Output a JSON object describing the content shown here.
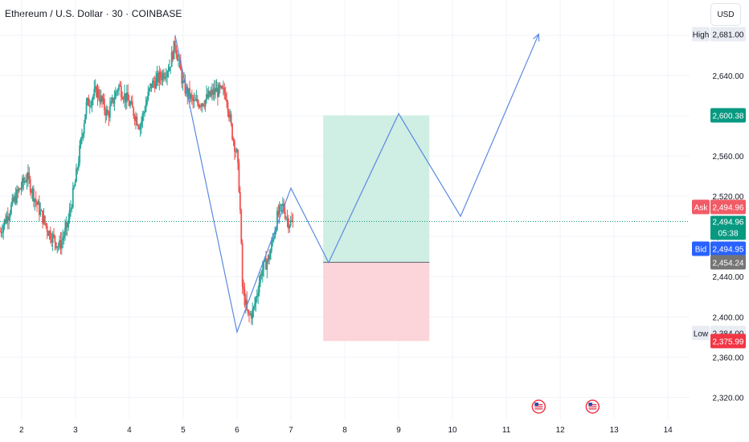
{
  "header": {
    "title": "Ethereum / U.S. Dollar · 30 · COINBASE",
    "currency": "USD"
  },
  "colors": {
    "up": "#26a69a",
    "down": "#ef5350",
    "drawing": "#5b8ae0",
    "profit_zone": "#cfeee4",
    "loss_zone": "#fbd5d9",
    "current_price": "#089981",
    "ask": "#f15b66",
    "bid": "#2962ff",
    "marker_tag": "#757575",
    "low_tag": "#f23645"
  },
  "chart_data": {
    "type": "candlestick",
    "symbol": "Ethereum / U.S. Dollar",
    "interval": "30",
    "exchange": "COINBASE",
    "x_ticks": [
      "2",
      "3",
      "4",
      "5",
      "6",
      "7",
      "8",
      "9",
      "10",
      "11",
      "12",
      "13",
      "14"
    ],
    "x_tick_days": [
      2,
      3,
      4,
      5,
      6,
      7,
      8,
      9,
      10,
      11,
      12,
      13,
      14
    ],
    "x_range": [
      1.6,
      14.4
    ],
    "y_ticks": [
      2320,
      2360,
      2400,
      2440,
      2480,
      2520,
      2560,
      2600,
      2640,
      2680
    ],
    "y_tick_labels": [
      "2,320.00",
      "2,360.00",
      "2,400.00",
      "2,440.00",
      "2,480.00",
      "2,520.00",
      "2,560.00",
      "2,600.00",
      "2,640.00",
      "2,680.00"
    ],
    "y_range": [
      2298,
      2715
    ],
    "price_path": [
      [
        1.6,
        2485
      ],
      [
        1.9,
        2520
      ],
      [
        2.1,
        2540
      ],
      [
        2.3,
        2510
      ],
      [
        2.5,
        2485
      ],
      [
        2.7,
        2470
      ],
      [
        2.85,
        2490
      ],
      [
        3.0,
        2535
      ],
      [
        3.2,
        2610
      ],
      [
        3.4,
        2625
      ],
      [
        3.6,
        2600
      ],
      [
        3.8,
        2630
      ],
      [
        4.0,
        2612
      ],
      [
        4.2,
        2590
      ],
      [
        4.4,
        2630
      ],
      [
        4.6,
        2640
      ],
      [
        4.75,
        2650
      ],
      [
        4.85,
        2672
      ],
      [
        5.0,
        2630
      ],
      [
        5.2,
        2612
      ],
      [
        5.4,
        2615
      ],
      [
        5.6,
        2625
      ],
      [
        5.8,
        2622
      ],
      [
        5.9,
        2585
      ],
      [
        6.0,
        2560
      ],
      [
        6.05,
        2520
      ],
      [
        6.1,
        2430
      ],
      [
        6.2,
        2400
      ],
      [
        6.3,
        2405
      ],
      [
        6.45,
        2445
      ],
      [
        6.6,
        2460
      ],
      [
        6.75,
        2500
      ],
      [
        6.85,
        2510
      ],
      [
        6.95,
        2495
      ],
      [
        7.05,
        2492
      ]
    ],
    "current_price": 2494.96,
    "countdown": "05:38",
    "high": 2681.0,
    "low": 2384.0,
    "price_tags": [
      {
        "label": "High",
        "value": "2,681.00",
        "price": 2681.0,
        "kind": "marker"
      },
      {
        "label": "",
        "value": "2,600.38",
        "price": 2600.38,
        "kind": "target"
      },
      {
        "label": "Ask",
        "value": "2,494.96",
        "price": 2494.96,
        "kind": "ask"
      },
      {
        "label": "Bid",
        "value": "2,494.95",
        "price": 2494.95,
        "kind": "bid"
      },
      {
        "label": "",
        "value": "2,454.24",
        "price": 2454.24,
        "kind": "entry"
      },
      {
        "label": "Low",
        "value": "2,384.00",
        "price": 2384.0,
        "kind": "marker"
      },
      {
        "label": "",
        "value": "2,375.99",
        "price": 2375.99,
        "kind": "stop"
      }
    ],
    "long_position": {
      "x_start": 7.6,
      "x_end": 9.57,
      "entry": 2454.24,
      "target": 2600.38,
      "stop": 2375.99
    },
    "projection_path": [
      [
        4.85,
        2680
      ],
      [
        6.0,
        2385
      ],
      [
        7.0,
        2528
      ],
      [
        7.7,
        2454
      ],
      [
        9.0,
        2602
      ],
      [
        10.15,
        2500
      ],
      [
        11.6,
        2681
      ]
    ],
    "events": [
      {
        "x": 11.6,
        "type": "us-economic-event"
      },
      {
        "x": 12.6,
        "type": "us-economic-event"
      }
    ]
  }
}
